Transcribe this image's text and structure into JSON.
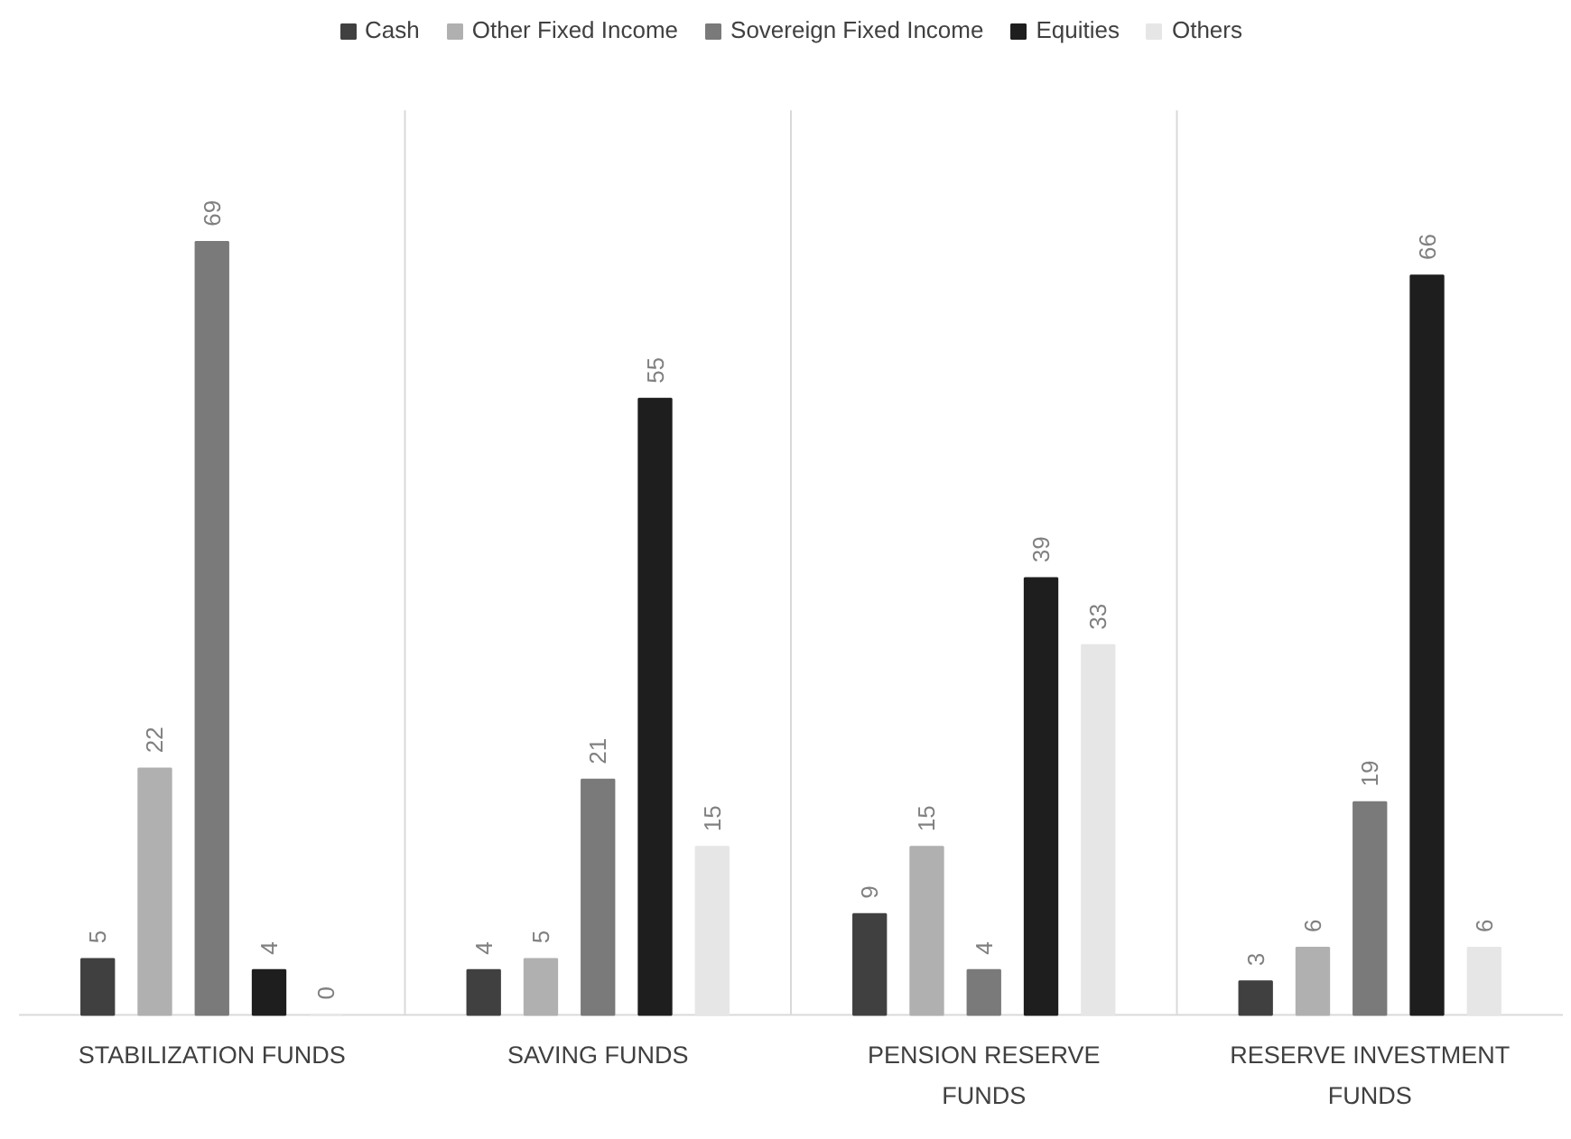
{
  "chart_data": {
    "type": "bar",
    "categories": [
      "STABILIZATION FUNDS",
      "SAVING FUNDS",
      "PENSION RESERVE FUNDS",
      "RESERVE INVESTMENT FUNDS"
    ],
    "series": [
      {
        "name": "Cash",
        "color": "#404040",
        "values": [
          5,
          4,
          9,
          3
        ]
      },
      {
        "name": "Other Fixed Income",
        "color": "#b0b0b0",
        "values": [
          22,
          5,
          15,
          6
        ]
      },
      {
        "name": "Sovereign Fixed Income",
        "color": "#7a7a7a",
        "values": [
          69,
          21,
          4,
          19
        ]
      },
      {
        "name": "Equities",
        "color": "#1e1e1e",
        "values": [
          4,
          55,
          39,
          66
        ]
      },
      {
        "name": "Others",
        "color": "#e6e6e6",
        "values": [
          0,
          15,
          33,
          6
        ]
      }
    ],
    "data_labels": true,
    "legend": "top",
    "grid": false
  }
}
